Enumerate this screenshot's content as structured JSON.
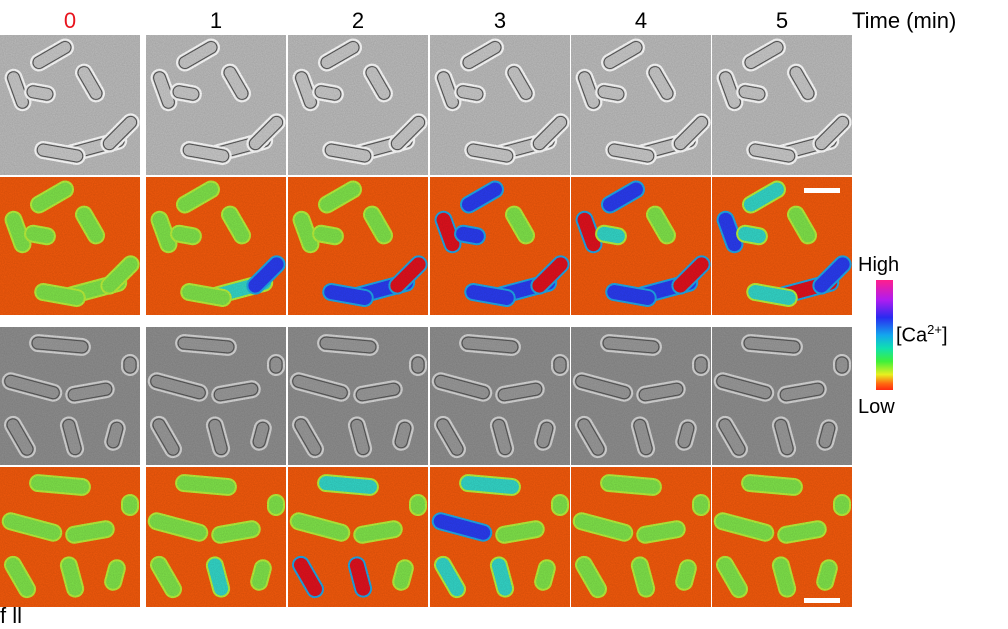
{
  "time_labels": [
    "0",
    "1",
    "2",
    "3",
    "4",
    "5"
  ],
  "time_unit": "Time (min)",
  "highlight_color": "#e8141e",
  "colorbar": {
    "high": "High",
    "low": "Low",
    "quantity": "[Ca",
    "superscript": "2+",
    "close": "]"
  },
  "caption_fragment": "f  ll"
}
